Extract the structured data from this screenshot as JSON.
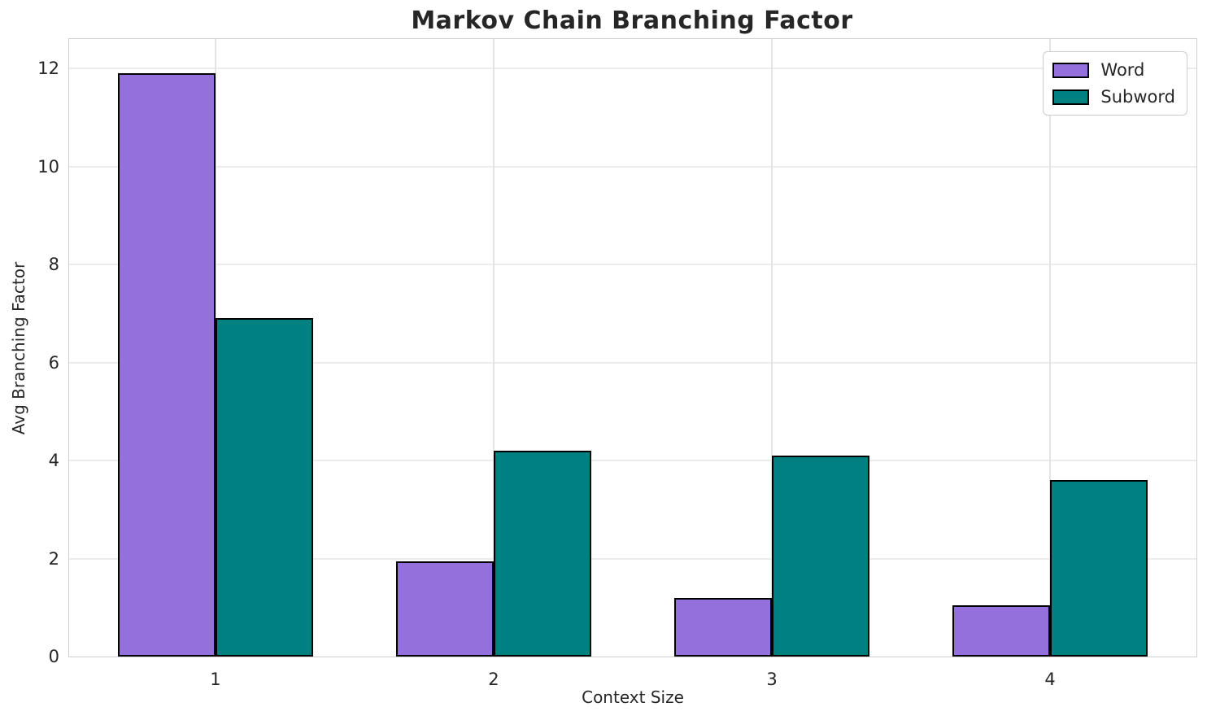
{
  "title": "Markov Chain Branching Factor",
  "chart_data": {
    "type": "bar",
    "title": "Markov Chain Branching Factor",
    "xlabel": "Context Size",
    "ylabel": "Avg Branching Factor",
    "categories": [
      1,
      2,
      3,
      4
    ],
    "series": [
      {
        "name": "Word",
        "color": "#9370DB",
        "values": [
          11.9,
          1.95,
          1.2,
          1.05
        ]
      },
      {
        "name": "Subword",
        "color": "#008080",
        "values": [
          6.9,
          4.2,
          4.1,
          3.6
        ]
      }
    ],
    "bar_width": 0.35,
    "bar_edge_color": "#000000",
    "xlim": [
      0.474,
      4.526
    ],
    "ylim": [
      0,
      12.6
    ],
    "yticks": [
      0,
      2,
      4,
      6,
      8,
      10,
      12
    ],
    "xticks": [
      1,
      2,
      3,
      4
    ],
    "grid": true,
    "legend_position": "upper right"
  },
  "colors": {
    "background": "#ffffff",
    "spine": "#cfcfcf",
    "grid_horizontal": "#ececec",
    "grid_vertical": "#e4e4e4",
    "text": "#262626"
  }
}
